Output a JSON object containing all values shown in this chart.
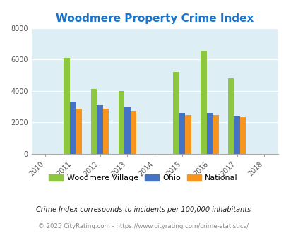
{
  "title": "Woodmere Property Crime Index",
  "all_years": [
    2010,
    2011,
    2012,
    2013,
    2014,
    2015,
    2016,
    2017,
    2018
  ],
  "data_years": [
    2011,
    2012,
    2013,
    2015,
    2016,
    2017
  ],
  "woodmere": [
    6100,
    4100,
    4000,
    5200,
    6550,
    4800
  ],
  "ohio": [
    3300,
    3100,
    2950,
    2580,
    2580,
    2420
  ],
  "national": [
    2880,
    2880,
    2720,
    2480,
    2480,
    2360
  ],
  "color_woodmere": "#8dc63f",
  "color_ohio": "#4472c4",
  "color_national": "#f7941d",
  "color_bg": "#ddeef4",
  "ylim": [
    0,
    8000
  ],
  "yticks": [
    0,
    2000,
    4000,
    6000,
    8000
  ],
  "bar_width": 0.22,
  "legend_labels": [
    "Woodmere Village",
    "Ohio",
    "National"
  ],
  "footnote1": "Crime Index corresponds to incidents per 100,000 inhabitants",
  "footnote2": "© 2025 CityRating.com - https://www.cityrating.com/crime-statistics/",
  "title_color": "#1874CD",
  "footnote1_color": "#222222",
  "footnote2_color": "#888888"
}
